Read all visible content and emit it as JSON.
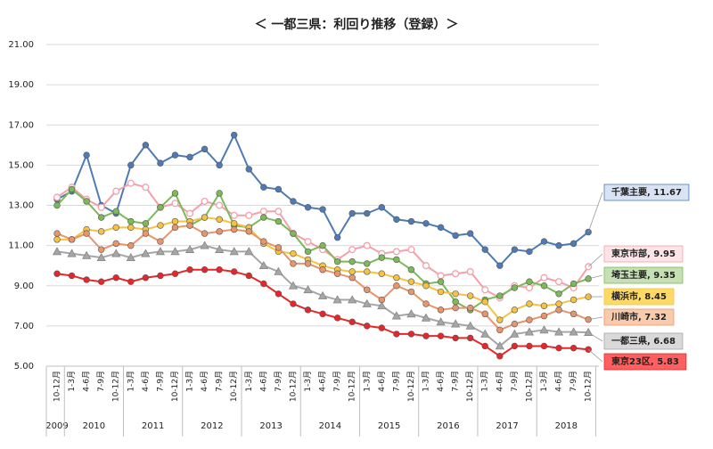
{
  "chart_data": {
    "type": "line",
    "title": "＜ 一都三県：利回り推移（登録）＞",
    "categories": [
      "10-12月",
      "1-3月",
      "4-6月",
      "7-9月",
      "10-12月",
      "1-3月",
      "4-6月",
      "7-9月",
      "10-12月",
      "1-3月",
      "4-6月",
      "7-9月",
      "10-12月",
      "1-3月",
      "4-6月",
      "7-9月",
      "10-12月",
      "1-3月",
      "4-6月",
      "7-9月",
      "10-12月",
      "1-3月",
      "4-6月",
      "7-9月",
      "10-12月",
      "1-3月",
      "4-6月",
      "7-9月",
      "10-12月",
      "1-3月",
      "4-6月",
      "7-9月",
      "10-12月",
      "1-3月",
      "4-6月",
      "7-9月",
      "10-12月"
    ],
    "years": [
      "2009",
      "2010",
      "2011",
      "2012",
      "2013",
      "2014",
      "2015",
      "2016",
      "2017",
      "2018"
    ],
    "ylim": [
      5,
      21
    ],
    "yticks": [
      {
        "value": 5,
        "label": "5.00"
      },
      {
        "value": 7,
        "label": "7.00"
      },
      {
        "value": 9,
        "label": "9.00"
      },
      {
        "value": 11,
        "label": "11.00"
      },
      {
        "value": 13,
        "label": "13.00"
      },
      {
        "value": 15,
        "label": "15.00"
      },
      {
        "value": 17,
        "label": "17.00"
      },
      {
        "value": 19,
        "label": "19.00"
      },
      {
        "value": 21,
        "label": "21.00"
      }
    ],
    "grid": true,
    "series": [
      {
        "name": "千葉主要",
        "color": "#4f7bb5",
        "marker": "circle",
        "end_label": "千葉主要, 11.67",
        "label_fill": "#dae3f3",
        "values": [
          13.3,
          13.7,
          15.5,
          13.0,
          12.6,
          15.0,
          16.0,
          15.1,
          15.5,
          15.4,
          15.8,
          15.0,
          16.5,
          14.8,
          13.9,
          13.8,
          13.2,
          12.9,
          12.8,
          11.4,
          12.6,
          12.6,
          12.9,
          12.3,
          12.2,
          12.1,
          11.9,
          11.5,
          11.6,
          10.8,
          10.0,
          10.8,
          10.7,
          11.2,
          11.0,
          11.1,
          11.67
        ]
      },
      {
        "name": "東京市部",
        "color": "#f4a0aa",
        "marker": "open",
        "end_label": "東京市部, 9.95",
        "label_fill": "#fde4e7",
        "values": [
          13.4,
          13.9,
          13.3,
          12.9,
          13.7,
          14.1,
          13.9,
          12.9,
          13.1,
          12.6,
          13.2,
          13.0,
          12.5,
          12.5,
          12.7,
          12.7,
          11.6,
          11.2,
          10.8,
          10.3,
          10.8,
          11.0,
          10.6,
          10.7,
          10.8,
          10.0,
          9.5,
          9.6,
          9.7,
          8.8,
          8.4,
          9.0,
          8.9,
          9.4,
          9.2,
          8.9,
          9.95
        ]
      },
      {
        "name": "埼玉主要",
        "color": "#7cba59",
        "marker": "circle",
        "end_label": "埼玉主要, 9.35",
        "label_fill": "#c6e0b4",
        "values": [
          13.0,
          13.8,
          13.2,
          12.4,
          12.7,
          12.2,
          12.1,
          12.9,
          13.6,
          12.0,
          12.4,
          13.6,
          12.0,
          11.9,
          12.4,
          12.2,
          11.6,
          10.7,
          11.0,
          10.2,
          10.2,
          10.1,
          10.4,
          10.3,
          9.8,
          9.1,
          9.2,
          8.2,
          7.8,
          8.3,
          8.5,
          8.9,
          9.2,
          9.0,
          8.6,
          9.1,
          9.35
        ]
      },
      {
        "name": "横浜市",
        "color": "#f5c242",
        "marker": "circle",
        "end_label": "横浜市, 8.45",
        "label_fill": "#ffd966",
        "values": [
          11.3,
          11.3,
          11.8,
          11.7,
          11.9,
          11.9,
          11.8,
          12.0,
          12.2,
          12.2,
          12.4,
          12.3,
          12.1,
          11.9,
          11.1,
          10.7,
          10.6,
          10.3,
          10.0,
          9.8,
          9.7,
          9.7,
          9.6,
          9.4,
          9.2,
          9.0,
          8.7,
          8.6,
          8.5,
          8.2,
          7.3,
          7.8,
          8.1,
          8.0,
          8.1,
          8.3,
          8.45
        ]
      },
      {
        "name": "川崎市",
        "color": "#e8956b",
        "marker": "circle",
        "end_label": "川崎市, 7.32",
        "label_fill": "#f8cbad",
        "values": [
          11.6,
          11.3,
          11.6,
          10.8,
          11.1,
          11.0,
          11.6,
          11.2,
          11.9,
          12.0,
          11.6,
          11.7,
          11.8,
          11.7,
          11.2,
          10.9,
          10.1,
          10.1,
          9.8,
          9.6,
          9.4,
          8.8,
          8.3,
          9.0,
          8.7,
          8.1,
          7.8,
          7.9,
          7.9,
          7.6,
          6.8,
          7.1,
          7.3,
          7.5,
          7.8,
          7.6,
          7.32
        ]
      },
      {
        "name": "一都三県",
        "color": "#a6a6a6",
        "marker": "triangle",
        "end_label": "一都三県, 6.68",
        "label_fill": "#d9d9d9",
        "values": [
          10.7,
          10.6,
          10.5,
          10.4,
          10.6,
          10.4,
          10.6,
          10.7,
          10.7,
          10.8,
          11.0,
          10.8,
          10.7,
          10.7,
          10.0,
          9.7,
          9.0,
          8.8,
          8.5,
          8.3,
          8.3,
          8.1,
          8.0,
          7.5,
          7.6,
          7.4,
          7.2,
          7.1,
          7.0,
          6.6,
          6.0,
          6.6,
          6.7,
          6.8,
          6.7,
          6.7,
          6.68
        ]
      },
      {
        "name": "東京23区",
        "color": "#e8262a",
        "marker": "circle",
        "end_label": "東京23区, 5.83",
        "label_fill": "#ff5f5f",
        "values": [
          9.6,
          9.5,
          9.3,
          9.2,
          9.4,
          9.2,
          9.4,
          9.5,
          9.6,
          9.8,
          9.8,
          9.8,
          9.7,
          9.5,
          9.1,
          8.6,
          8.1,
          7.8,
          7.6,
          7.4,
          7.2,
          7.0,
          6.9,
          6.6,
          6.6,
          6.5,
          6.5,
          6.4,
          6.4,
          6.0,
          5.5,
          6.0,
          6.0,
          6.0,
          5.9,
          5.9,
          5.83
        ]
      }
    ]
  }
}
